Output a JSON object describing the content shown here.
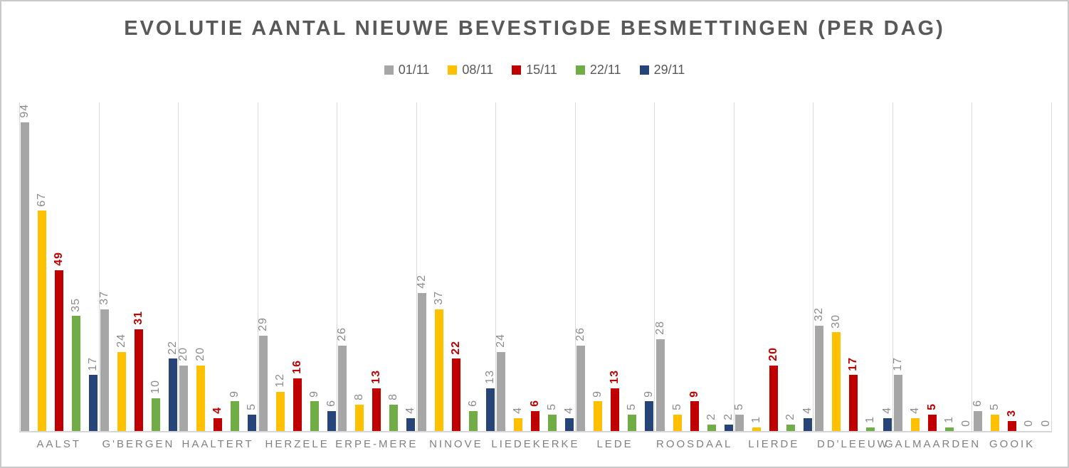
{
  "title": "EVOLUTIE AANTAL NIEUWE BEVESTIGDE BESMETTINGEN (PER DAG)",
  "chart_data": {
    "type": "bar",
    "title": "EVOLUTIE AANTAL NIEUWE BEVESTIGDE BESMETTINGEN (PER DAG)",
    "categories": [
      "AALST",
      "G'BERGEN",
      "HAALTERT",
      "HERZELE",
      "ERPE-MERE",
      "NINOVE",
      "LIEDEKERKE",
      "LEDE",
      "ROOSDAAL",
      "LIERDE",
      "DD'LEEUW",
      "GALMAARDEN",
      "GOOIK"
    ],
    "series": [
      {
        "name": "01/11",
        "color": "#a6a6a6",
        "value_label_color": "#8c8c8c",
        "value_label_bold": false,
        "values": [
          94,
          37,
          20,
          29,
          26,
          42,
          24,
          26,
          28,
          5,
          32,
          17,
          6
        ]
      },
      {
        "name": "08/11",
        "color": "#ffc000",
        "value_label_color": "#8c8c8c",
        "value_label_bold": false,
        "values": [
          67,
          24,
          20,
          12,
          8,
          37,
          4,
          9,
          5,
          1,
          30,
          4,
          5
        ]
      },
      {
        "name": "15/11",
        "color": "#c00000",
        "value_label_color": "#c00000",
        "value_label_bold": true,
        "values": [
          49,
          31,
          4,
          16,
          13,
          22,
          6,
          13,
          9,
          20,
          17,
          5,
          3
        ]
      },
      {
        "name": "22/11",
        "color": "#70ad47",
        "value_label_color": "#8c8c8c",
        "value_label_bold": false,
        "values": [
          35,
          10,
          9,
          9,
          8,
          6,
          5,
          5,
          2,
          2,
          1,
          1,
          0
        ]
      },
      {
        "name": "29/11",
        "color": "#264478",
        "value_label_color": "#8c8c8c",
        "value_label_bold": false,
        "values": [
          17,
          22,
          5,
          6,
          4,
          13,
          4,
          9,
          2,
          4,
          4,
          0,
          0
        ]
      }
    ],
    "xlabel": "",
    "ylabel": "",
    "ylim": [
      0,
      100
    ],
    "grid": "vertical category separator lines only",
    "legend_position": "top-center",
    "value_labels": "rotated 90 degrees above each bar; 15/11 series labels shown red bold",
    "title_color": "#595959",
    "axis_label_color": "#7f7f7f",
    "gridline_color": "#d9d9d9"
  }
}
